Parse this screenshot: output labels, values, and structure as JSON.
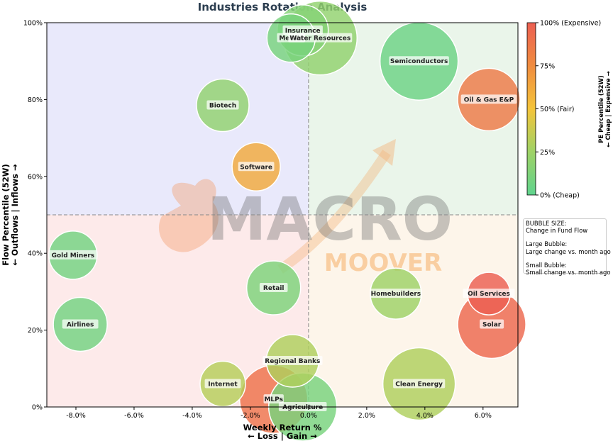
{
  "chart_data": {
    "type": "bubble",
    "title": "Industries Rotation Analysis",
    "xlabel": [
      "Weekly Return %",
      "← Loss | Gain →"
    ],
    "ylabel": [
      "Flow Percentile (52W)",
      "← Outflows | Inflows →"
    ],
    "xlim": [
      -9.0,
      7.2
    ],
    "ylim": [
      0,
      100
    ],
    "x_ticks": [
      -8,
      -6,
      -4,
      -2,
      0,
      2,
      4,
      6
    ],
    "x_tick_labels": [
      "-8.0%",
      "-6.0%",
      "-4.0%",
      "-2.0%",
      "0.0%",
      "2.0%",
      "4.0%",
      "6.0%"
    ],
    "y_ticks": [
      0,
      20,
      40,
      60,
      80,
      100
    ],
    "y_tick_labels": [
      "0%",
      "20%",
      "40%",
      "60%",
      "80%",
      "100%"
    ],
    "quadrant_dividers": {
      "x": 0,
      "y": 50
    },
    "quadrant_colors": {
      "top_left": "#e9e9fb",
      "top_right": "#eaf5ea",
      "bottom_left": "#fdeaea",
      "bottom_right": "#fdf5ea"
    },
    "colorbar": {
      "label": [
        "PE Percentile (52W)",
        "← Cheap | Expensive →"
      ],
      "ticks": [
        0,
        25,
        50,
        75,
        100
      ],
      "tick_labels": [
        "0% (Cheap)",
        "25%",
        "50% (Fair)",
        "75%",
        "100% (Expensive)"
      ],
      "colors": [
        "#5fd38d",
        "#9ed266",
        "#f4c43a",
        "#f08c3f",
        "#ec5f52"
      ]
    },
    "legend_text": [
      "BUBBLE SIZE:",
      "Change in Fund Flow",
      "",
      "Large Bubble:",
      "Large change vs. month ago",
      "",
      "Small Bubble:",
      "Small change vs. month ago"
    ],
    "watermark": [
      "MACRO",
      "MOOVER"
    ],
    "series": [
      {
        "name": "Insurance",
        "x": -0.2,
        "y": 98,
        "size": 36,
        "pe": 15
      },
      {
        "name": "Metals",
        "x": -0.6,
        "y": 96,
        "size": 34,
        "pe": 10
      },
      {
        "name": "Water Resources",
        "x": 0.4,
        "y": 96,
        "size": 52,
        "pe": 20
      },
      {
        "name": "Semiconductors",
        "x": 3.8,
        "y": 90,
        "size": 55,
        "pe": 5
      },
      {
        "name": "Oil & Gas E&P",
        "x": 6.2,
        "y": 80,
        "size": 44,
        "pe": 85
      },
      {
        "name": "Biotech",
        "x": -2.95,
        "y": 78.5,
        "size": 37,
        "pe": 20
      },
      {
        "name": "Software",
        "x": -1.8,
        "y": 62.5,
        "size": 34,
        "pe": 62
      },
      {
        "name": "Gold Miners",
        "x": -8.1,
        "y": 39.5,
        "size": 34,
        "pe": 8
      },
      {
        "name": "Retail",
        "x": -1.2,
        "y": 31,
        "size": 38,
        "pe": 12
      },
      {
        "name": "Homebuilders",
        "x": 3.0,
        "y": 29.5,
        "size": 36,
        "pe": 25
      },
      {
        "name": "Oil Services",
        "x": 6.2,
        "y": 29.5,
        "size": 30,
        "pe": 100
      },
      {
        "name": "Solar",
        "x": 6.3,
        "y": 21.5,
        "size": 48,
        "pe": 95
      },
      {
        "name": "Airlines",
        "x": -7.85,
        "y": 21.5,
        "size": 38,
        "pe": 8
      },
      {
        "name": "Regional Banks",
        "x": -0.55,
        "y": 12,
        "size": 37,
        "pe": 30
      },
      {
        "name": "Clean Energy",
        "x": 3.8,
        "y": 6,
        "size": 51,
        "pe": 30
      },
      {
        "name": "Internet",
        "x": -2.95,
        "y": 6,
        "size": 32,
        "pe": 32
      },
      {
        "name": "MLPs",
        "x": -1.2,
        "y": 2,
        "size": 48,
        "pe": 90
      },
      {
        "name": "Agriculture",
        "x": -0.2,
        "y": 0,
        "size": 48,
        "pe": 10
      }
    ]
  }
}
